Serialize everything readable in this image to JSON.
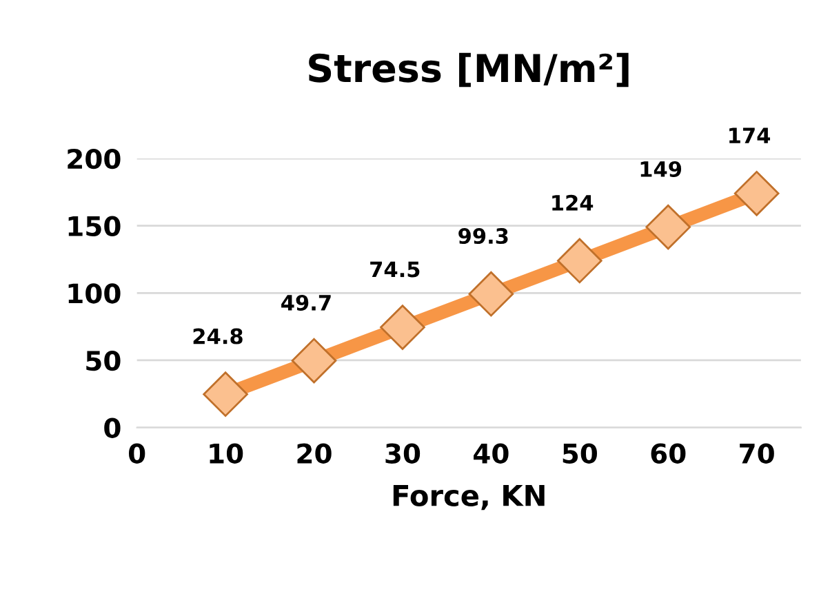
{
  "chart_data": {
    "type": "line",
    "title": "Stress [MN/m²]",
    "xlabel": "Force, KN",
    "x": [
      10,
      20,
      30,
      40,
      50,
      60,
      70
    ],
    "series": [
      {
        "color": "#f79646",
        "values": [
          24.8,
          49.7,
          74.5,
          99.3,
          124,
          149,
          174
        ]
      }
    ],
    "xlim": [
      0,
      75
    ],
    "xticks": [
      0,
      10,
      20,
      30,
      40,
      50,
      60,
      70
    ],
    "ylim": [
      0,
      200
    ],
    "yticks": [
      0,
      50,
      100,
      150,
      200
    ],
    "grid": "y",
    "marker": "diamond",
    "line_style": "solid",
    "data_labels": true,
    "legend": false
  }
}
